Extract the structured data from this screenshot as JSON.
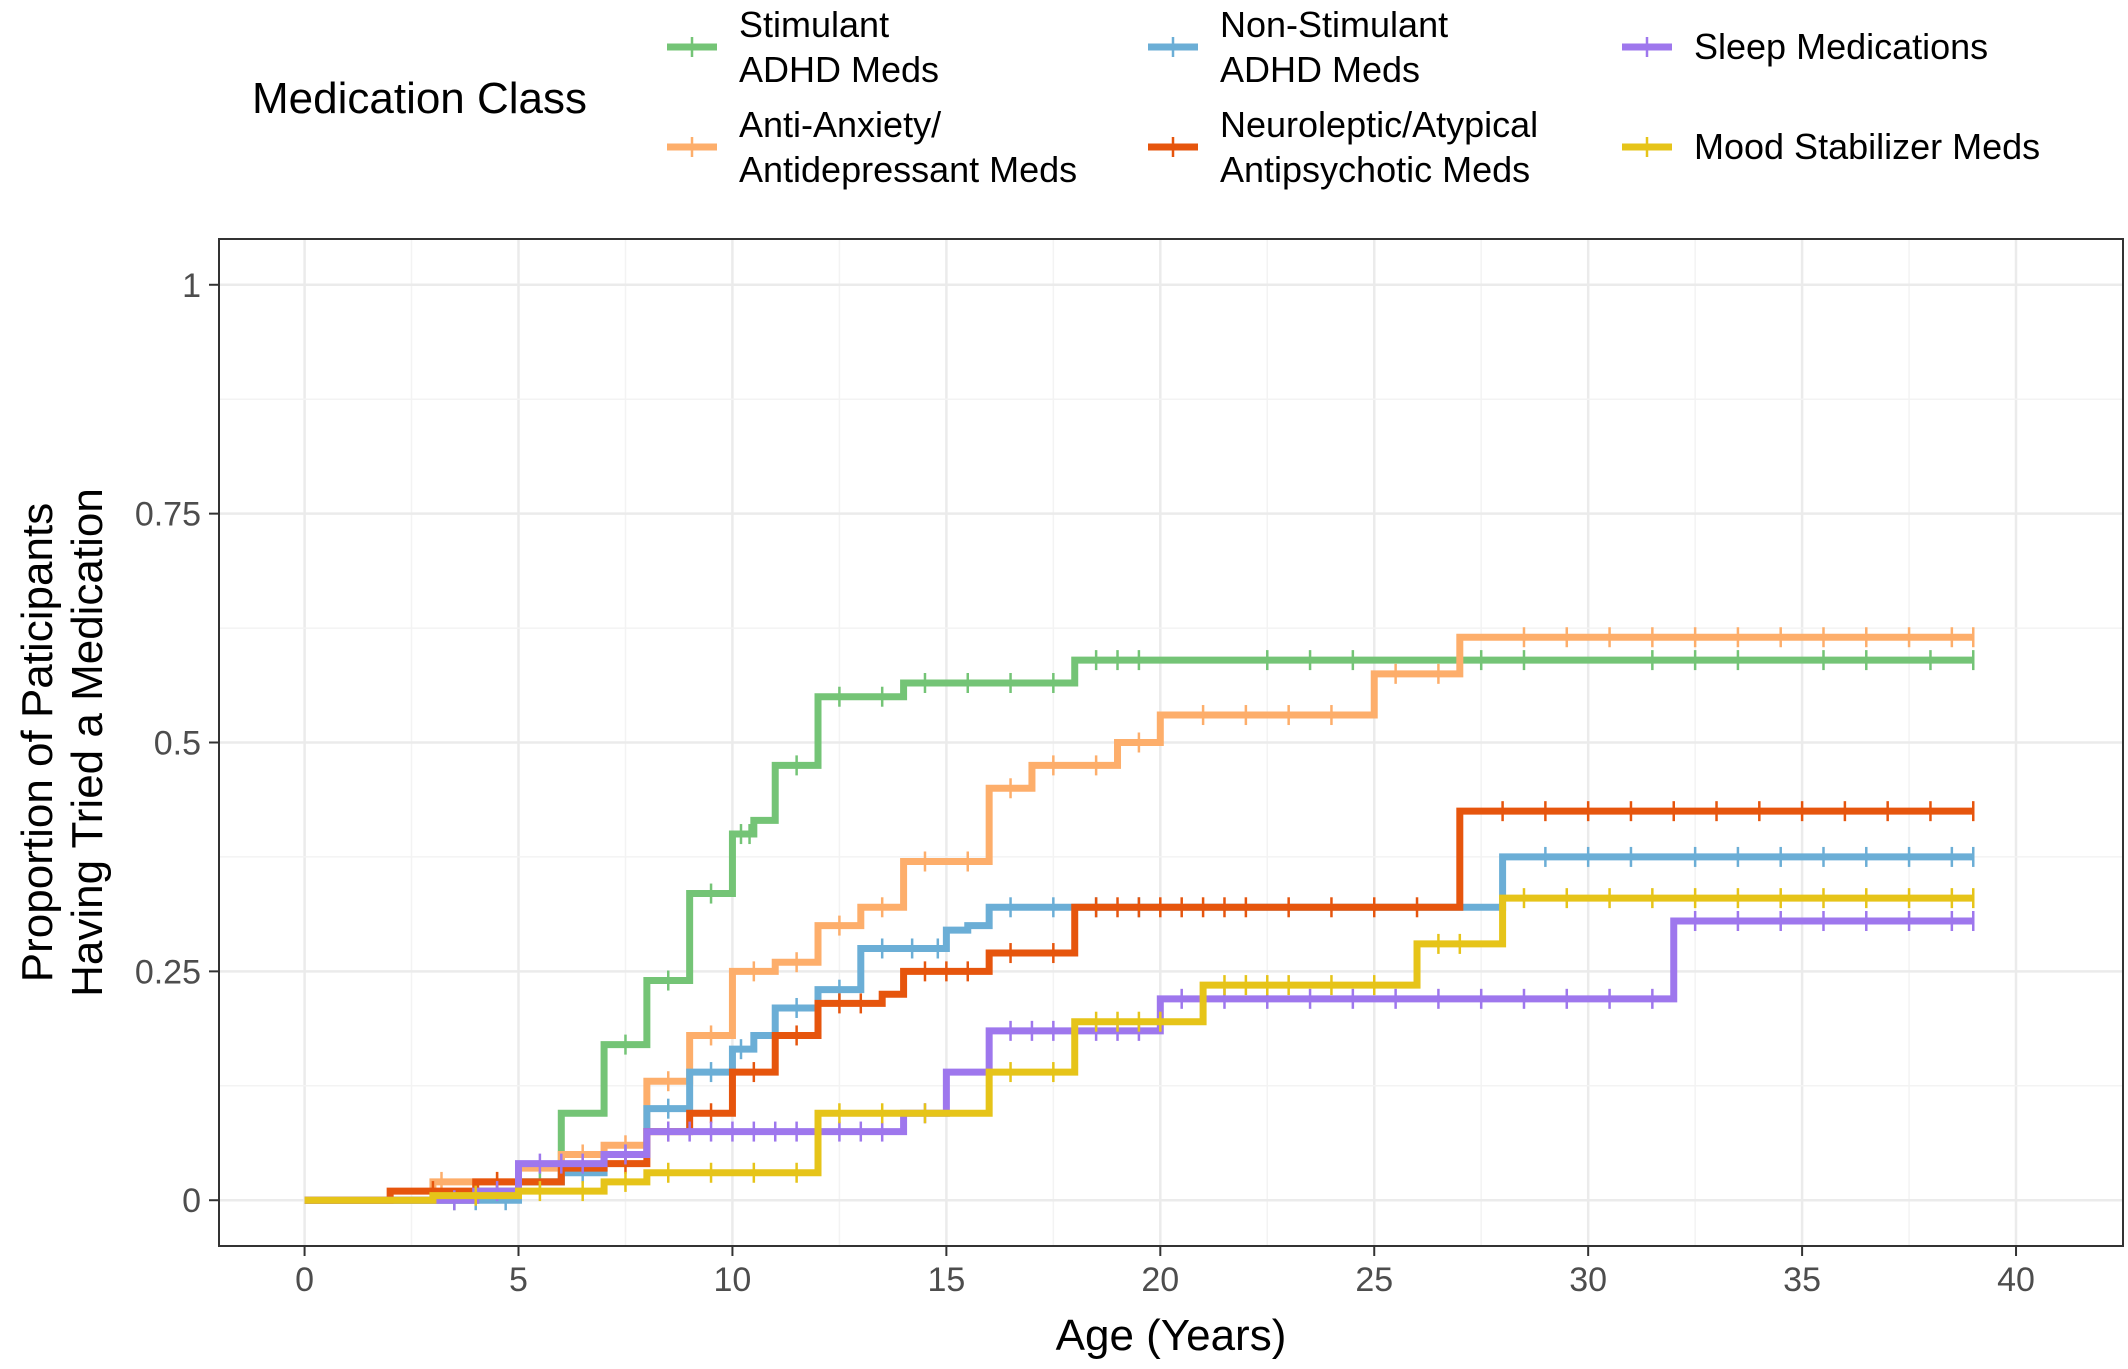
{
  "chart_data": {
    "type": "line",
    "step": true,
    "xlabel": "Age (Years)",
    "ylabel_lines": [
      "Proportion of Paticipants",
      "Having Tried a Medication"
    ],
    "xlim": [
      -2,
      42.5
    ],
    "ylim": [
      -0.05,
      1.05
    ],
    "x_ticks": [
      0,
      5,
      10,
      15,
      20,
      25,
      30,
      35,
      40
    ],
    "y_ticks": [
      0,
      0.25,
      0.5,
      0.75,
      1
    ],
    "y_tick_labels": [
      "0",
      "0.25",
      "0.5",
      "0.75",
      "1"
    ],
    "grid": true,
    "legend": {
      "title": "Medication Class",
      "position": "top",
      "entries": [
        {
          "series": 0,
          "lines": [
            "Stimulant",
            "ADHD Meds"
          ]
        },
        {
          "series": 1,
          "lines": [
            "Anti-Anxiety/",
            "Antidepressant Meds"
          ]
        },
        {
          "series": 2,
          "lines": [
            "Non-Stimulant",
            "ADHD Meds"
          ]
        },
        {
          "series": 3,
          "lines": [
            "Neuroleptic/Atypical",
            "Antipsychotic Meds"
          ]
        },
        {
          "series": 4,
          "lines": [
            "Sleep Medications"
          ]
        },
        {
          "series": 5,
          "lines": [
            "Mood Stabilizer Meds"
          ]
        }
      ]
    },
    "series": [
      {
        "name": "Stimulant ADHD Meds",
        "color": "#74c476",
        "points": [
          [
            0,
            0
          ],
          [
            3,
            0
          ],
          [
            4,
            0.01
          ],
          [
            5,
            0.02
          ],
          [
            6,
            0.095
          ],
          [
            7,
            0.17
          ],
          [
            8,
            0.24
          ],
          [
            9,
            0.335
          ],
          [
            10,
            0.4
          ],
          [
            10.5,
            0.415
          ],
          [
            11,
            0.475
          ],
          [
            12,
            0.55
          ],
          [
            14,
            0.565
          ],
          [
            18,
            0.59
          ],
          [
            39,
            0.59
          ]
        ],
        "censor": [
          3.5,
          4.5,
          5.5,
          7.5,
          8.5,
          9.5,
          10.2,
          10.4,
          11.5,
          12.5,
          13.5,
          14.5,
          15.5,
          16.5,
          17.5,
          18.5,
          19,
          19.5,
          22.5,
          23.5,
          24.5,
          27.5,
          28.5,
          31.5,
          32.5,
          33.5,
          35.5,
          36.5,
          38,
          39
        ]
      },
      {
        "name": "Anti-Anxiety/Antidepressant Meds",
        "color": "#fdae6b",
        "points": [
          [
            0,
            0
          ],
          [
            3,
            0.02
          ],
          [
            4,
            0.02
          ],
          [
            5,
            0.035
          ],
          [
            6,
            0.05
          ],
          [
            7,
            0.06
          ],
          [
            8,
            0.13
          ],
          [
            9,
            0.18
          ],
          [
            10,
            0.25
          ],
          [
            11,
            0.26
          ],
          [
            12,
            0.3
          ],
          [
            13,
            0.32
          ],
          [
            14,
            0.37
          ],
          [
            16,
            0.45
          ],
          [
            17,
            0.475
          ],
          [
            19,
            0.5
          ],
          [
            20,
            0.53
          ],
          [
            25,
            0.575
          ],
          [
            27,
            0.615
          ],
          [
            39,
            0.615
          ]
        ],
        "censor": [
          3.2,
          4.5,
          6.5,
          7.5,
          8.5,
          9.5,
          10.5,
          11.5,
          12.5,
          13.5,
          14.5,
          15.5,
          16.5,
          17.5,
          18.5,
          19.5,
          21,
          22,
          23,
          24,
          25.5,
          26.5,
          28.5,
          29.5,
          30.5,
          31.5,
          32.5,
          33.5,
          34.5,
          35.5,
          36.5,
          37.5,
          38.5,
          39
        ]
      },
      {
        "name": "Non-Stimulant ADHD Meds",
        "color": "#6baed6",
        "points": [
          [
            0,
            0
          ],
          [
            5,
            0.02
          ],
          [
            6,
            0.03
          ],
          [
            7,
            0.05
          ],
          [
            8,
            0.1
          ],
          [
            9,
            0.14
          ],
          [
            10,
            0.165
          ],
          [
            10.5,
            0.18
          ],
          [
            11,
            0.21
          ],
          [
            12,
            0.23
          ],
          [
            13,
            0.275
          ],
          [
            15,
            0.295
          ],
          [
            15.5,
            0.3
          ],
          [
            16,
            0.32
          ],
          [
            28,
            0.375
          ],
          [
            39,
            0.375
          ]
        ],
        "censor": [
          4,
          4.7,
          6.5,
          7.5,
          8.5,
          9.5,
          10.2,
          11.5,
          12.5,
          13.5,
          14.2,
          14.8,
          16.5,
          17.5,
          18.5,
          19.5,
          29,
          30,
          31,
          32.5,
          33.5,
          34.5,
          35.5,
          36.5,
          37.5,
          38.5,
          39
        ]
      },
      {
        "name": "Neuroleptic/Atypical Antipsychotic Meds",
        "color": "#e6550d",
        "points": [
          [
            0,
            0
          ],
          [
            2,
            0.01
          ],
          [
            4,
            0.02
          ],
          [
            6,
            0.035
          ],
          [
            7,
            0.04
          ],
          [
            8,
            0.075
          ],
          [
            9,
            0.095
          ],
          [
            10,
            0.14
          ],
          [
            11,
            0.18
          ],
          [
            12,
            0.215
          ],
          [
            13.5,
            0.225
          ],
          [
            14,
            0.25
          ],
          [
            16,
            0.27
          ],
          [
            18,
            0.32
          ],
          [
            27,
            0.425
          ],
          [
            39,
            0.425
          ]
        ],
        "censor": [
          3,
          4.5,
          5,
          7.5,
          8.5,
          9.5,
          10.5,
          11.5,
          12.5,
          13,
          14.5,
          15,
          15.5,
          16.5,
          17.5,
          18.5,
          19,
          19.5,
          20,
          20.5,
          21,
          21.5,
          22,
          23,
          24,
          25,
          26,
          28,
          29,
          30,
          31,
          32,
          33,
          34,
          35,
          36,
          37,
          38,
          39
        ]
      },
      {
        "name": "Sleep Medications",
        "color": "#9e77ed",
        "points": [
          [
            0,
            0
          ],
          [
            4,
            0.01
          ],
          [
            5,
            0.04
          ],
          [
            7,
            0.05
          ],
          [
            8,
            0.075
          ],
          [
            14,
            0.095
          ],
          [
            15,
            0.14
          ],
          [
            16,
            0.185
          ],
          [
            20,
            0.22
          ],
          [
            21,
            0.22
          ],
          [
            32,
            0.305
          ],
          [
            39,
            0.305
          ]
        ],
        "censor": [
          3.5,
          4.5,
          5.5,
          6,
          6.5,
          7.5,
          8.5,
          9,
          9.5,
          10,
          10.5,
          11,
          11.5,
          12,
          12.5,
          13,
          13.5,
          14.5,
          16.5,
          17,
          17.5,
          18.5,
          19,
          19.5,
          20.5,
          21.5,
          22.5,
          23.5,
          24.5,
          25.5,
          26.5,
          27.5,
          28.5,
          29.5,
          30.5,
          31.5,
          32.5,
          33.5,
          34.5,
          35.5,
          36.5,
          37.5,
          38.5,
          39
        ]
      },
      {
        "name": "Mood Stabilizer Meds",
        "color": "#e6c419",
        "points": [
          [
            0,
            0
          ],
          [
            3,
            0.005
          ],
          [
            5,
            0.01
          ],
          [
            7,
            0.02
          ],
          [
            8,
            0.03
          ],
          [
            12,
            0.095
          ],
          [
            15,
            0.095
          ],
          [
            16,
            0.14
          ],
          [
            18,
            0.195
          ],
          [
            21,
            0.235
          ],
          [
            26,
            0.28
          ],
          [
            28,
            0.33
          ],
          [
            39,
            0.33
          ]
        ],
        "censor": [
          4,
          5.5,
          6.5,
          7.5,
          8.5,
          9.5,
          10.5,
          11.5,
          12.5,
          13.5,
          14.5,
          16.5,
          17.5,
          18.5,
          19,
          19.5,
          20,
          21.5,
          22,
          22.5,
          23,
          24,
          25,
          26.5,
          27,
          28.5,
          29.5,
          30.5,
          31.5,
          32.5,
          33.5,
          34.5,
          35.5,
          36.5,
          37.5,
          38.5,
          39
        ]
      }
    ]
  }
}
